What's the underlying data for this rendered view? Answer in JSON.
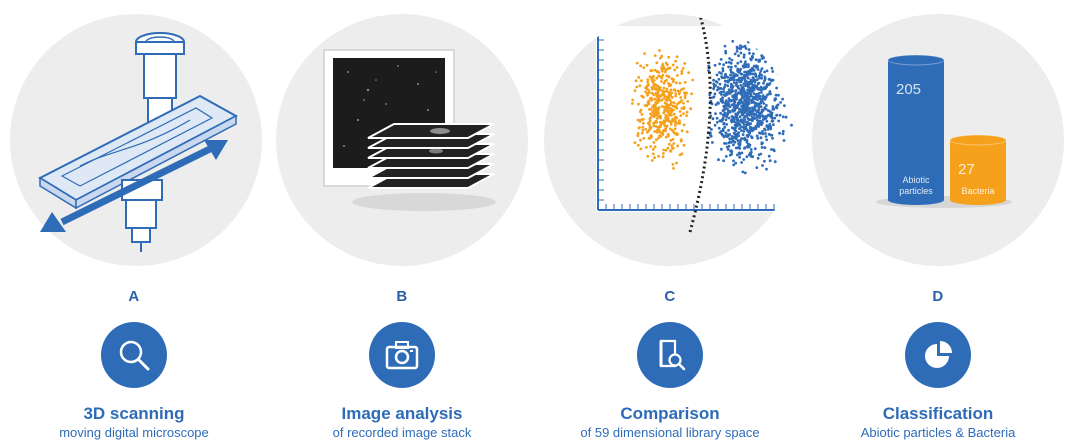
{
  "panels": [
    {
      "letter": "A",
      "icon": "magnifier-icon",
      "title": "3D scanning",
      "subtitle": "moving digital microscope"
    },
    {
      "letter": "B",
      "icon": "camera-icon",
      "title": "Image analysis",
      "subtitle": "of recorded image stack"
    },
    {
      "letter": "C",
      "icon": "document-search-icon",
      "title": "Comparison",
      "subtitle": "of 59 dimensional library space"
    },
    {
      "letter": "D",
      "icon": "pie-chart-icon",
      "title": "Classification",
      "subtitle": "Abiotic particles & Bacteria"
    }
  ],
  "chart": {
    "categories": [
      "Abiotic particles",
      "Bacteria"
    ],
    "values": [
      205,
      27
    ],
    "value_labels": [
      "205",
      "27"
    ],
    "label_lines": [
      [
        "Abiotic",
        "particles"
      ],
      [
        "Bacteria"
      ]
    ],
    "colors": [
      "#2f6cb8",
      "#f5a11c"
    ]
  },
  "colors": {
    "accent": "#2f6cb8",
    "orange": "#f5a11c",
    "circle_bg": "#ededed"
  }
}
